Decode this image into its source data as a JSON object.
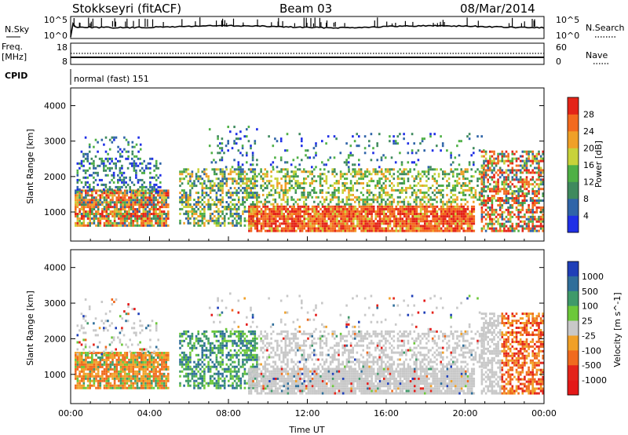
{
  "header": {
    "station": "Stokkseyri (fitACF)",
    "beam": "Beam 03",
    "date": "08/Mar/2014"
  },
  "strip_panels": {
    "nsky": {
      "label": "N.Sky",
      "left_ticks": [
        "10^5",
        "10^0"
      ],
      "right_ticks": [
        "10^5",
        "10^0"
      ],
      "right_label": "N.Search"
    },
    "freq": {
      "label_line1": "Freq.",
      "label_line2": "[MHz]",
      "left_ticks": [
        "18",
        "8"
      ],
      "right_ticks": [
        "60",
        "0"
      ],
      "right_label": "Nave"
    },
    "cpid": {
      "label": "CPID",
      "text": "normal (fast) 151"
    }
  },
  "chart_data": [
    {
      "type": "heatmap",
      "name": "power-panel",
      "ylabel": "Slant Range [km]",
      "yticks": [
        1000,
        2000,
        3000,
        4000
      ],
      "ylim": [
        180,
        4500
      ],
      "xlim_hours": [
        0,
        24
      ],
      "colorbar": {
        "label": "Power [dB]",
        "ticks": [
          4,
          8,
          12,
          16,
          20,
          24,
          28
        ],
        "colors": [
          "#1f2fe6",
          "#2f64a8",
          "#3f8a5e",
          "#4fb046",
          "#c8d23a",
          "#f0a028",
          "#f36a1e",
          "#e42418"
        ]
      }
    },
    {
      "type": "heatmap",
      "name": "velocity-panel",
      "ylabel": "Slant Range [km]",
      "yticks": [
        1000,
        2000,
        3000,
        4000
      ],
      "ylim": [
        180,
        4500
      ],
      "xlim_hours": [
        0,
        24
      ],
      "xlabel": "Time UT",
      "xticks": [
        "00:00",
        "04:00",
        "08:00",
        "12:00",
        "16:00",
        "20:00",
        "00:00"
      ],
      "colorbar": {
        "label": "Velocity [m s^-1]",
        "ticks": [
          "1000",
          "500",
          "100",
          "25",
          "-25",
          "-100",
          "-500",
          "-1000"
        ],
        "colors": [
          "#1f3fb8",
          "#2f6e9a",
          "#3f9a6a",
          "#6cc83a",
          "#c8c8c8",
          "#f0a028",
          "#f06a1e",
          "#e4241a",
          "#e41818"
        ]
      }
    }
  ]
}
